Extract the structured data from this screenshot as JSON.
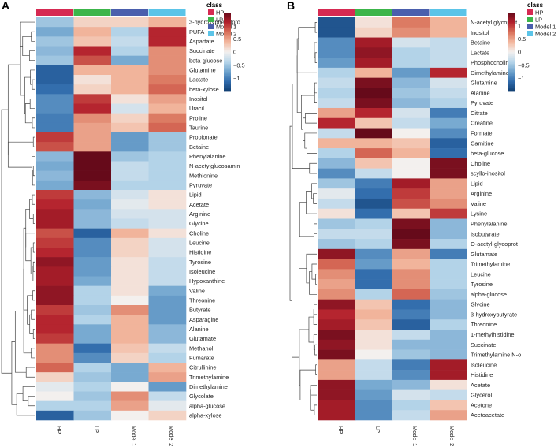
{
  "chart_data": [
    {
      "type": "heatmap",
      "panel_label": "A",
      "title": "",
      "legend_title": "class",
      "groups": [
        {
          "name": "HP",
          "color": "#d62a52"
        },
        {
          "name": "LP",
          "color": "#3cb54a"
        },
        {
          "name": "Model 1",
          "color": "#4a5fad"
        },
        {
          "name": "Model 2",
          "color": "#5bc4e8"
        }
      ],
      "columns": [
        "HP",
        "LP",
        "Model 1",
        "Model 2"
      ],
      "color_scale": {
        "min": -1.5,
        "max": 1.5,
        "ticks": [
          1,
          0.5,
          0,
          -0.5,
          -1
        ],
        "tick_labels": [
          "1",
          "0.5",
          "0",
          "−0.5",
          "−1"
        ],
        "colors": [
          "#103e70",
          "#2f6aab",
          "#6ea3cd",
          "#b8d6ea",
          "#f3f0ee",
          "#f3b9a0",
          "#d9715a",
          "#b2202c",
          "#660a1a"
        ]
      },
      "rows": [
        "3-hydroxyphenylpro",
        "PUFA",
        "Aspartate",
        "Succinate",
        "beta-glucose",
        "Glutamine",
        "Lactate",
        "beta-xylose",
        "Inositol",
        "Uracil",
        "Proline",
        "Taurine",
        "Propionate",
        "Betaine",
        "Phenylalanine",
        "N-acetylglucosamin",
        "Methionine",
        "Pyruvate",
        "Lipid",
        "Acetate",
        "Arginine",
        "Glycine",
        "Choline",
        "Leucine",
        "Histidine",
        "Tyrosine",
        "Isoleucine",
        "Hypoxanthine",
        "Valine",
        "Threonine",
        "Butyrate",
        "Asparagine",
        "Alanine",
        "Glutamate",
        "Methanol",
        "Fumarate",
        "Citrullinine",
        "Trimethylamine",
        "Dimethylamine",
        "Glycolate",
        "alpha-glucose",
        "alpha-xylose"
      ],
      "values": [
        [
          -0.5,
          0.2,
          0.2,
          0.4
        ],
        [
          -0.7,
          0.4,
          -0.4,
          1.1
        ],
        [
          -0.5,
          0.3,
          -0.3,
          1.1
        ],
        [
          -0.6,
          1.1,
          -0.4,
          0.6
        ],
        [
          -0.5,
          0.9,
          -0.7,
          0.6
        ],
        [
          -1.2,
          0.4,
          0.4,
          0.6
        ],
        [
          -1.2,
          0.1,
          0.4,
          0.7
        ],
        [
          -1.1,
          0.2,
          0.4,
          0.8
        ],
        [
          -0.9,
          1.0,
          0.1,
          0.5
        ],
        [
          -0.9,
          1.1,
          -0.2,
          0.4
        ],
        [
          -1.0,
          0.6,
          0.2,
          0.7
        ],
        [
          -1.0,
          0.5,
          0.3,
          0.8
        ],
        [
          1.0,
          0.5,
          -0.8,
          -0.5
        ],
        [
          0.9,
          0.5,
          -0.8,
          -0.5
        ],
        [
          -0.6,
          1.5,
          -0.5,
          -0.4
        ],
        [
          -0.7,
          1.5,
          -0.3,
          -0.4
        ],
        [
          -0.6,
          1.5,
          -0.3,
          -0.4
        ],
        [
          -0.7,
          1.4,
          -0.4,
          -0.4
        ],
        [
          1.0,
          -0.6,
          -0.2,
          0.1
        ],
        [
          1.1,
          -0.7,
          -0.1,
          0.1
        ],
        [
          1.2,
          -0.6,
          -0.2,
          -0.2
        ],
        [
          1.2,
          -0.6,
          -0.3,
          -0.2
        ],
        [
          0.9,
          -1.2,
          0.4,
          0.1
        ],
        [
          1.0,
          -0.9,
          0.2,
          -0.2
        ],
        [
          1.1,
          -0.9,
          0.2,
          -0.2
        ],
        [
          1.3,
          -0.8,
          0.1,
          -0.3
        ],
        [
          1.2,
          -0.8,
          0.1,
          -0.3
        ],
        [
          1.2,
          -0.7,
          0.1,
          -0.3
        ],
        [
          1.3,
          -0.4,
          0.1,
          -0.7
        ],
        [
          1.3,
          -0.4,
          0.0,
          -0.8
        ],
        [
          1.0,
          -0.5,
          0.6,
          -0.8
        ],
        [
          1.1,
          -0.4,
          0.4,
          -0.8
        ],
        [
          1.1,
          -0.7,
          0.4,
          -0.6
        ],
        [
          1.0,
          -0.7,
          0.4,
          -0.6
        ],
        [
          0.6,
          -1.1,
          0.3,
          -0.3
        ],
        [
          0.6,
          -0.9,
          0.2,
          -0.4
        ],
        [
          0.8,
          -0.4,
          -0.7,
          0.4
        ],
        [
          0.2,
          -0.5,
          -0.7,
          0.5
        ],
        [
          -0.1,
          -0.4,
          0.0,
          -0.8
        ],
        [
          0.0,
          -0.5,
          0.6,
          -0.3
        ],
        [
          -0.4,
          -0.4,
          0.5,
          -0.1
        ],
        [
          -1.2,
          -0.5,
          0.0,
          0.2
        ]
      ]
    },
    {
      "type": "heatmap",
      "panel_label": "B",
      "title": "",
      "legend_title": "class",
      "groups": [
        {
          "name": "HP",
          "color": "#d62a52"
        },
        {
          "name": "LP",
          "color": "#3cb54a"
        },
        {
          "name": "Model 1",
          "color": "#4a5fad"
        },
        {
          "name": "Model 2",
          "color": "#5bc4e8"
        }
      ],
      "columns": [
        "HP",
        "LP",
        "Model 1",
        "Model 2"
      ],
      "color_scale": {
        "min": -1.5,
        "max": 1.5,
        "ticks": [
          1,
          0.5,
          0,
          -0.5,
          -1
        ],
        "tick_labels": [
          "1",
          "0.5",
          "0",
          "−0.5",
          "−1"
        ],
        "colors": [
          "#103e70",
          "#2f6aab",
          "#6ea3cd",
          "#b8d6ea",
          "#f3f0ee",
          "#f3b9a0",
          "#d9715a",
          "#b2202c",
          "#660a1a"
        ]
      },
      "rows": [
        "N-acetyl glycoprot",
        "Inositol",
        "Betaine",
        "Lactate",
        "Phosphocholine",
        "Dimethylamine",
        "Glutamine",
        "Alanine",
        "Pyruvate",
        "Citrate",
        "Creatine",
        "Formate",
        "Carnitine",
        "beta-glucose",
        "Choline",
        "scyllo-inositol",
        "Lipid",
        "Arginine",
        "Valine",
        "Lysine",
        "Phenylalanine",
        "Isobutyrate",
        "O-acetyl-glycoprot",
        "Glutamate",
        "Trimethylamine",
        "Leucine",
        "Tyrosine",
        "alpha-glucose",
        "Glycine",
        "3-hydroxybutyrate",
        "Threonine",
        "1-methylhistidine",
        "Succinate",
        "Trimethylamine N-o",
        "Isoleucine",
        "Histidine",
        "Acetate",
        "Glycerol",
        "Acetone",
        "Acetoacetate"
      ],
      "values": [
        [
          -1.3,
          0.1,
          0.7,
          0.4
        ],
        [
          -1.3,
          0.2,
          0.6,
          0.4
        ],
        [
          -0.9,
          1.2,
          -0.2,
          -0.3
        ],
        [
          -0.9,
          1.3,
          -0.4,
          -0.3
        ],
        [
          -0.8,
          1.2,
          -0.4,
          -0.3
        ],
        [
          -0.4,
          0.4,
          -0.8,
          1.1
        ],
        [
          -0.3,
          1.4,
          -0.6,
          -0.2
        ],
        [
          -0.4,
          1.5,
          -0.5,
          -0.3
        ],
        [
          -0.3,
          1.4,
          -0.6,
          -0.4
        ],
        [
          0.5,
          1.1,
          -0.2,
          -1.0
        ],
        [
          1.1,
          0.3,
          -0.3,
          -0.7
        ],
        [
          -0.3,
          1.5,
          0.0,
          -0.9
        ],
        [
          0.4,
          0.4,
          0.3,
          -1.2
        ],
        [
          -0.4,
          0.8,
          0.4,
          -1.1
        ],
        [
          -0.6,
          0.3,
          0.0,
          1.4
        ],
        [
          -0.9,
          -0.3,
          0.0,
          1.4
        ],
        [
          -0.5,
          -1.0,
          1.2,
          0.5
        ],
        [
          -0.1,
          -1.1,
          1.0,
          0.5
        ],
        [
          -0.3,
          -1.3,
          0.9,
          0.6
        ],
        [
          0.1,
          -1.1,
          0.3,
          1.0
        ],
        [
          -0.5,
          -0.4,
          1.4,
          -0.6
        ],
        [
          -0.3,
          -0.3,
          1.5,
          -0.6
        ],
        [
          -0.5,
          -0.4,
          1.4,
          -0.4
        ],
        [
          1.3,
          -0.9,
          0.5,
          -1.0
        ],
        [
          0.8,
          -0.8,
          0.4,
          -0.4
        ],
        [
          0.6,
          -1.1,
          0.6,
          -0.4
        ],
        [
          0.5,
          -1.1,
          0.6,
          -0.4
        ],
        [
          0.6,
          -0.4,
          0.8,
          -0.5
        ],
        [
          1.3,
          0.3,
          -1.1,
          -0.6
        ],
        [
          1.1,
          0.4,
          -1.0,
          -0.6
        ],
        [
          1.2,
          0.3,
          -1.2,
          -0.4
        ],
        [
          1.4,
          0.1,
          -0.3,
          -0.6
        ],
        [
          1.3,
          0.1,
          -0.6,
          -0.6
        ],
        [
          1.4,
          0.0,
          -0.5,
          -0.6
        ],
        [
          0.5,
          -0.3,
          -1.0,
          1.2
        ],
        [
          0.5,
          -0.3,
          -0.9,
          1.2
        ],
        [
          1.3,
          -0.7,
          -0.6,
          0.1
        ],
        [
          1.3,
          -0.8,
          -0.2,
          -0.3
        ],
        [
          1.2,
          -0.9,
          -0.4,
          0.3
        ],
        [
          1.2,
          -0.9,
          -0.3,
          0.5
        ]
      ]
    }
  ]
}
